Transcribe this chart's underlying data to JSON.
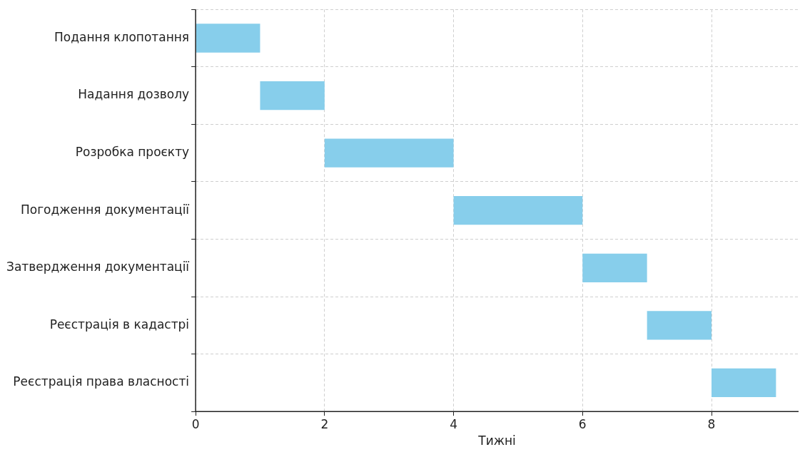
{
  "chart_data": {
    "type": "bar",
    "orientation": "horizontal",
    "xlabel": "Тижні",
    "categories": [
      "Подання клопотання",
      "Надання дозволу",
      "Розробка проєкту",
      "Погодження документації",
      "Затвердження документації",
      "Реєстрація в кадастрі",
      "Реєстрація права власності"
    ],
    "base": [
      0,
      1,
      2,
      4,
      6,
      7,
      8
    ],
    "values": [
      1,
      1,
      2,
      2,
      1,
      1,
      1
    ],
    "color": "#87ceeb",
    "xlim": [
      0,
      9.35
    ],
    "xticks": [
      0,
      2,
      4,
      6,
      8
    ],
    "grid": true,
    "legend": false
  }
}
